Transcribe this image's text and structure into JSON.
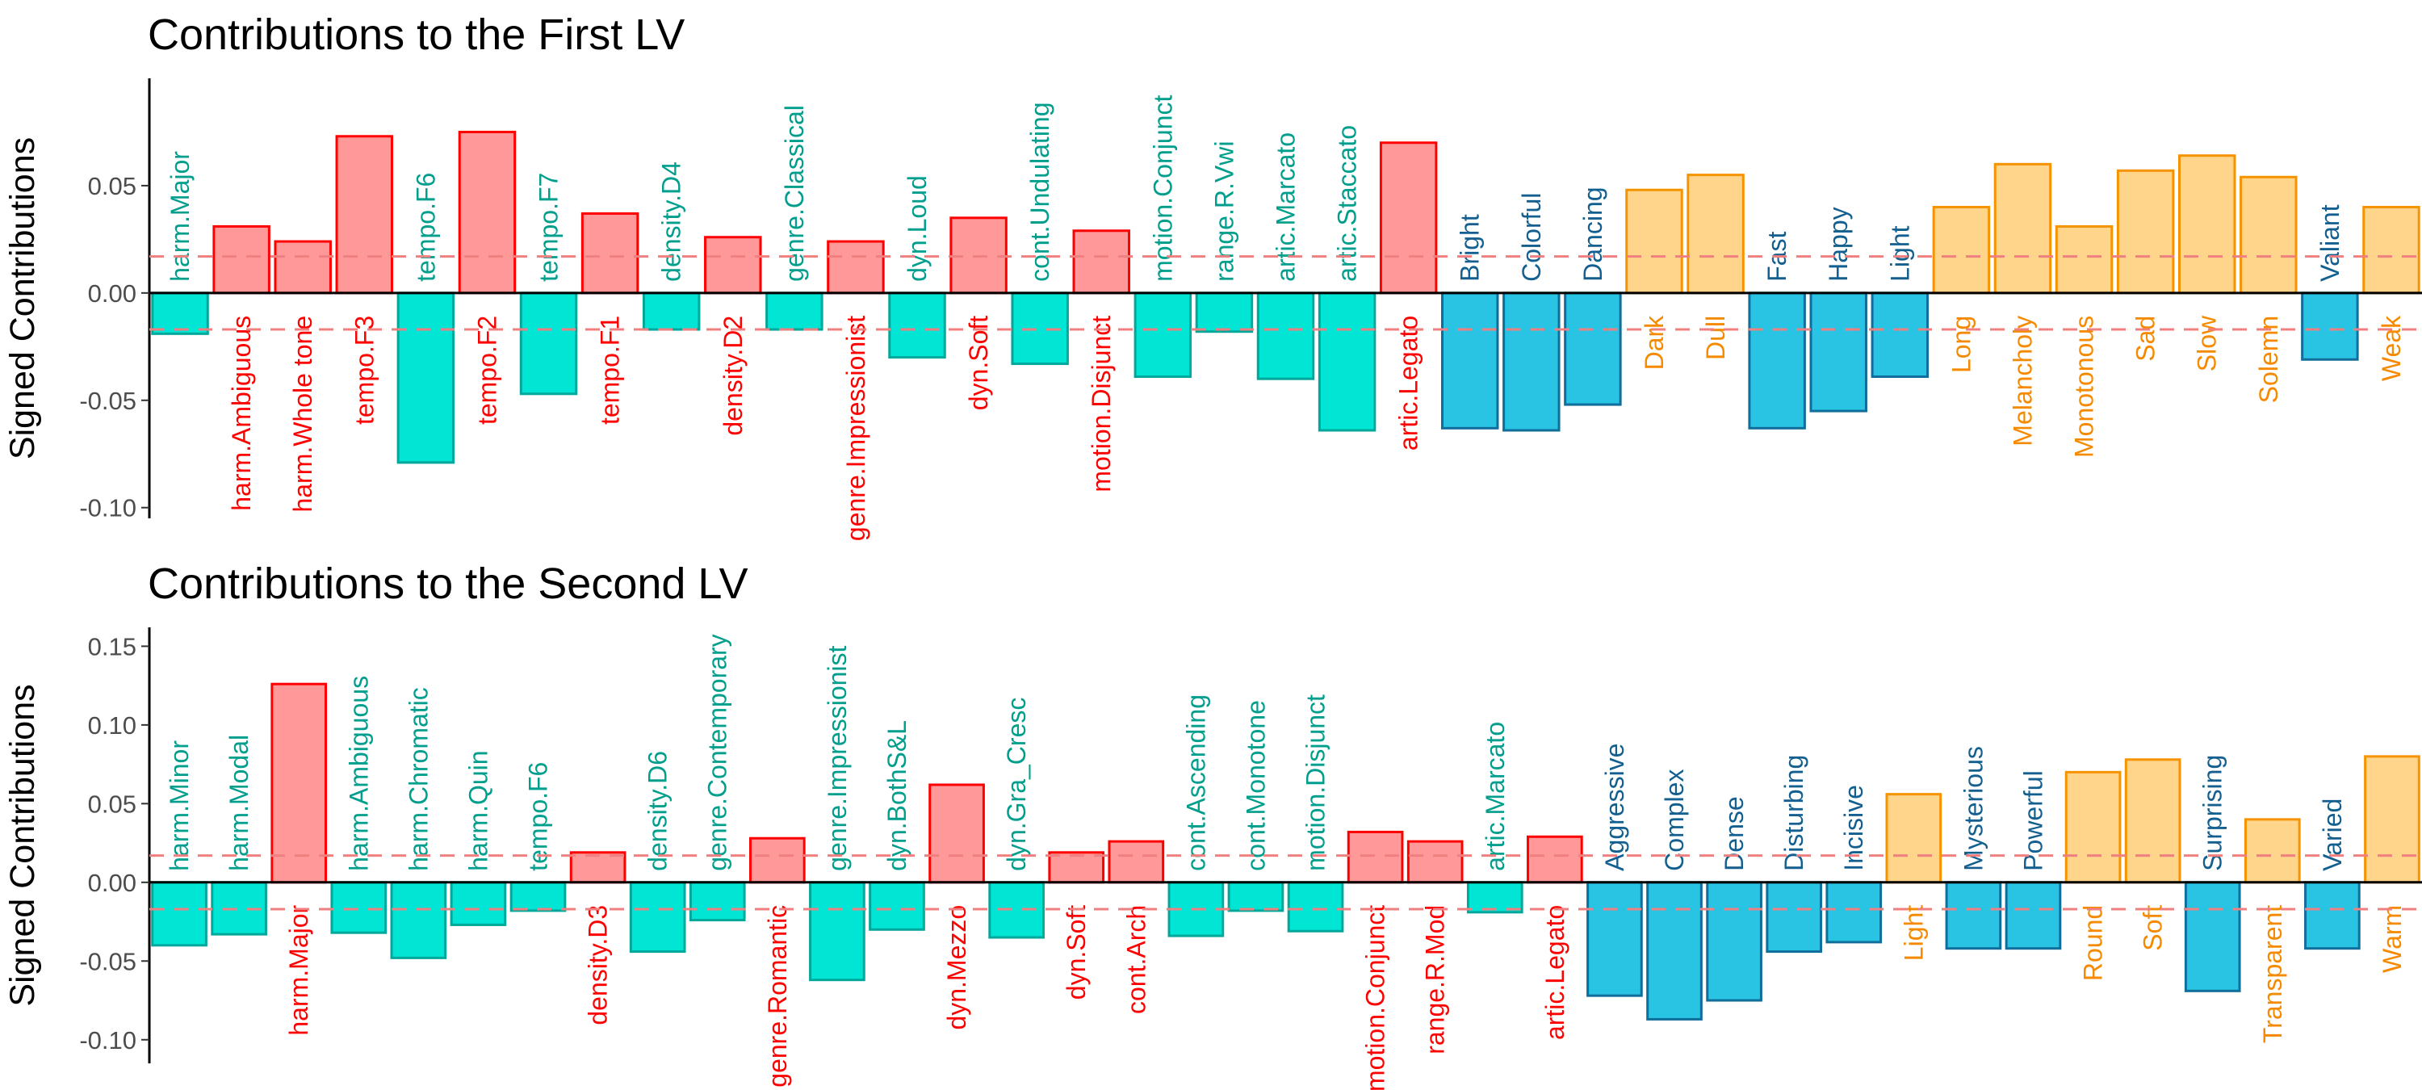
{
  "colors": {
    "design_neg_fill": "#00e5d4",
    "design_neg_stroke": "#00a89b",
    "design_neg_text": "#009e8c",
    "design_pos_fill": "#ff9999",
    "design_pos_stroke": "#ff0000",
    "design_pos_text": "#ff0000",
    "adj_neg_fill": "#29c3e3",
    "adj_neg_stroke": "#106e9b",
    "adj_neg_text": "#135f8f",
    "adj_pos_fill": "#ffd58c",
    "adj_pos_stroke": "#f59300",
    "adj_pos_text": "#f58a00",
    "threshold": "#f08080"
  },
  "chart_data": [
    {
      "type": "bar",
      "title": "Contributions to the First LV",
      "ylabel": "Signed Contributions",
      "xlabel": "",
      "ylim": [
        -0.105,
        0.1
      ],
      "yticks": [
        -0.1,
        -0.05,
        0.0,
        0.05
      ],
      "ytick_labels": [
        "-0.10",
        "-0.05",
        "0.00",
        "0.05"
      ],
      "threshold": 0.017,
      "grid": false,
      "bars": [
        {
          "label": "harm.Major",
          "value": -0.019,
          "group": "design"
        },
        {
          "label": "harm.Ambiguous",
          "value": 0.031,
          "group": "design"
        },
        {
          "label": "harm.Whole tone",
          "value": 0.024,
          "group": "design"
        },
        {
          "label": "tempo.F3",
          "value": 0.073,
          "group": "design"
        },
        {
          "label": "tempo.F6",
          "value": -0.079,
          "group": "design"
        },
        {
          "label": "tempo.F2",
          "value": 0.075,
          "group": "design"
        },
        {
          "label": "tempo.F7",
          "value": -0.047,
          "group": "design"
        },
        {
          "label": "tempo.F1",
          "value": 0.037,
          "group": "design"
        },
        {
          "label": "density.D4",
          "value": -0.017,
          "group": "design"
        },
        {
          "label": "density.D2",
          "value": 0.026,
          "group": "design"
        },
        {
          "label": "genre.Classical",
          "value": -0.017,
          "group": "design"
        },
        {
          "label": "genre.Impressionist",
          "value": 0.024,
          "group": "design"
        },
        {
          "label": "dyn.Loud",
          "value": -0.03,
          "group": "design"
        },
        {
          "label": "dyn.Soft",
          "value": 0.035,
          "group": "design"
        },
        {
          "label": "cont.Undulating",
          "value": -0.033,
          "group": "design"
        },
        {
          "label": "motion.Disjunct",
          "value": 0.029,
          "group": "design"
        },
        {
          "label": "motion.Conjunct",
          "value": -0.039,
          "group": "design"
        },
        {
          "label": "range.R.Vwi",
          "value": -0.018,
          "group": "design"
        },
        {
          "label": "artic.Marcato",
          "value": -0.04,
          "group": "design"
        },
        {
          "label": "artic.Staccato",
          "value": -0.064,
          "group": "design"
        },
        {
          "label": "artic.Legato",
          "value": 0.07,
          "group": "design"
        },
        {
          "label": "Bright",
          "value": -0.063,
          "group": "adjective"
        },
        {
          "label": "Colorful",
          "value": -0.064,
          "group": "adjective"
        },
        {
          "label": "Dancing",
          "value": -0.052,
          "group": "adjective"
        },
        {
          "label": "Dark",
          "value": 0.048,
          "group": "adjective"
        },
        {
          "label": "Dull",
          "value": 0.055,
          "group": "adjective"
        },
        {
          "label": "Fast",
          "value": -0.063,
          "group": "adjective"
        },
        {
          "label": "Happy",
          "value": -0.055,
          "group": "adjective"
        },
        {
          "label": "Light",
          "value": -0.039,
          "group": "adjective"
        },
        {
          "label": "Long",
          "value": 0.04,
          "group": "adjective"
        },
        {
          "label": "Melancholy",
          "value": 0.06,
          "group": "adjective"
        },
        {
          "label": "Monotonous",
          "value": 0.031,
          "group": "adjective"
        },
        {
          "label": "Sad",
          "value": 0.057,
          "group": "adjective"
        },
        {
          "label": "Slow",
          "value": 0.064,
          "group": "adjective"
        },
        {
          "label": "Solemn",
          "value": 0.054,
          "group": "adjective"
        },
        {
          "label": "Valiant",
          "value": -0.031,
          "group": "adjective"
        },
        {
          "label": "Weak",
          "value": 0.04,
          "group": "adjective"
        }
      ]
    },
    {
      "type": "bar",
      "title": "Contributions to the Second LV",
      "ylabel": "Signed Contributions",
      "xlabel": "",
      "ylim": [
        -0.115,
        0.162
      ],
      "yticks": [
        -0.1,
        -0.05,
        0.0,
        0.05,
        0.1,
        0.15
      ],
      "ytick_labels": [
        "-0.10",
        "-0.05",
        "0.00",
        "0.05",
        "0.10",
        "0.15"
      ],
      "threshold": 0.017,
      "grid": false,
      "bars": [
        {
          "label": "harm.Minor",
          "value": -0.04,
          "group": "design"
        },
        {
          "label": "harm.Modal",
          "value": -0.033,
          "group": "design"
        },
        {
          "label": "harm.Major",
          "value": 0.126,
          "group": "design"
        },
        {
          "label": "harm.Ambiguous",
          "value": -0.032,
          "group": "design"
        },
        {
          "label": "harm.Chromatic",
          "value": -0.048,
          "group": "design"
        },
        {
          "label": "harm.Quin",
          "value": -0.027,
          "group": "design"
        },
        {
          "label": "tempo.F6",
          "value": -0.018,
          "group": "design"
        },
        {
          "label": "density.D3",
          "value": 0.019,
          "group": "design"
        },
        {
          "label": "density.D6",
          "value": -0.044,
          "group": "design"
        },
        {
          "label": "genre.Contemporary",
          "value": -0.024,
          "group": "design"
        },
        {
          "label": "genre.Romantic",
          "value": 0.028,
          "group": "design"
        },
        {
          "label": "genre.Impressionist",
          "value": -0.062,
          "group": "design"
        },
        {
          "label": "dyn.BothS&L",
          "value": -0.03,
          "group": "design"
        },
        {
          "label": "dyn.Mezzo",
          "value": 0.062,
          "group": "design"
        },
        {
          "label": "dyn.Gra_Cresc",
          "value": -0.035,
          "group": "design"
        },
        {
          "label": "dyn.Soft",
          "value": 0.019,
          "group": "design"
        },
        {
          "label": "cont.Arch",
          "value": 0.026,
          "group": "design"
        },
        {
          "label": "cont.Ascending",
          "value": -0.034,
          "group": "design"
        },
        {
          "label": "cont.Monotone",
          "value": -0.018,
          "group": "design"
        },
        {
          "label": "motion.Disjunct",
          "value": -0.031,
          "group": "design"
        },
        {
          "label": "motion.Conjunct",
          "value": 0.032,
          "group": "design"
        },
        {
          "label": "range.R.Mod",
          "value": 0.026,
          "group": "design"
        },
        {
          "label": "artic.Marcato",
          "value": -0.019,
          "group": "design"
        },
        {
          "label": "artic.Legato",
          "value": 0.029,
          "group": "design"
        },
        {
          "label": "Aggressive",
          "value": -0.072,
          "group": "adjective"
        },
        {
          "label": "Complex",
          "value": -0.087,
          "group": "adjective"
        },
        {
          "label": "Dense",
          "value": -0.075,
          "group": "adjective"
        },
        {
          "label": "Disturbing",
          "value": -0.044,
          "group": "adjective"
        },
        {
          "label": "Incisive",
          "value": -0.038,
          "group": "adjective"
        },
        {
          "label": "Light",
          "value": 0.056,
          "group": "adjective"
        },
        {
          "label": "Mysterious",
          "value": -0.042,
          "group": "adjective"
        },
        {
          "label": "Powerful",
          "value": -0.042,
          "group": "adjective"
        },
        {
          "label": "Round",
          "value": 0.07,
          "group": "adjective"
        },
        {
          "label": "Soft",
          "value": 0.078,
          "group": "adjective"
        },
        {
          "label": "Surprising",
          "value": -0.069,
          "group": "adjective"
        },
        {
          "label": "Transparent",
          "value": 0.04,
          "group": "adjective"
        },
        {
          "label": "Varied",
          "value": -0.042,
          "group": "adjective"
        },
        {
          "label": "Warm",
          "value": 0.08,
          "group": "adjective"
        }
      ]
    }
  ]
}
